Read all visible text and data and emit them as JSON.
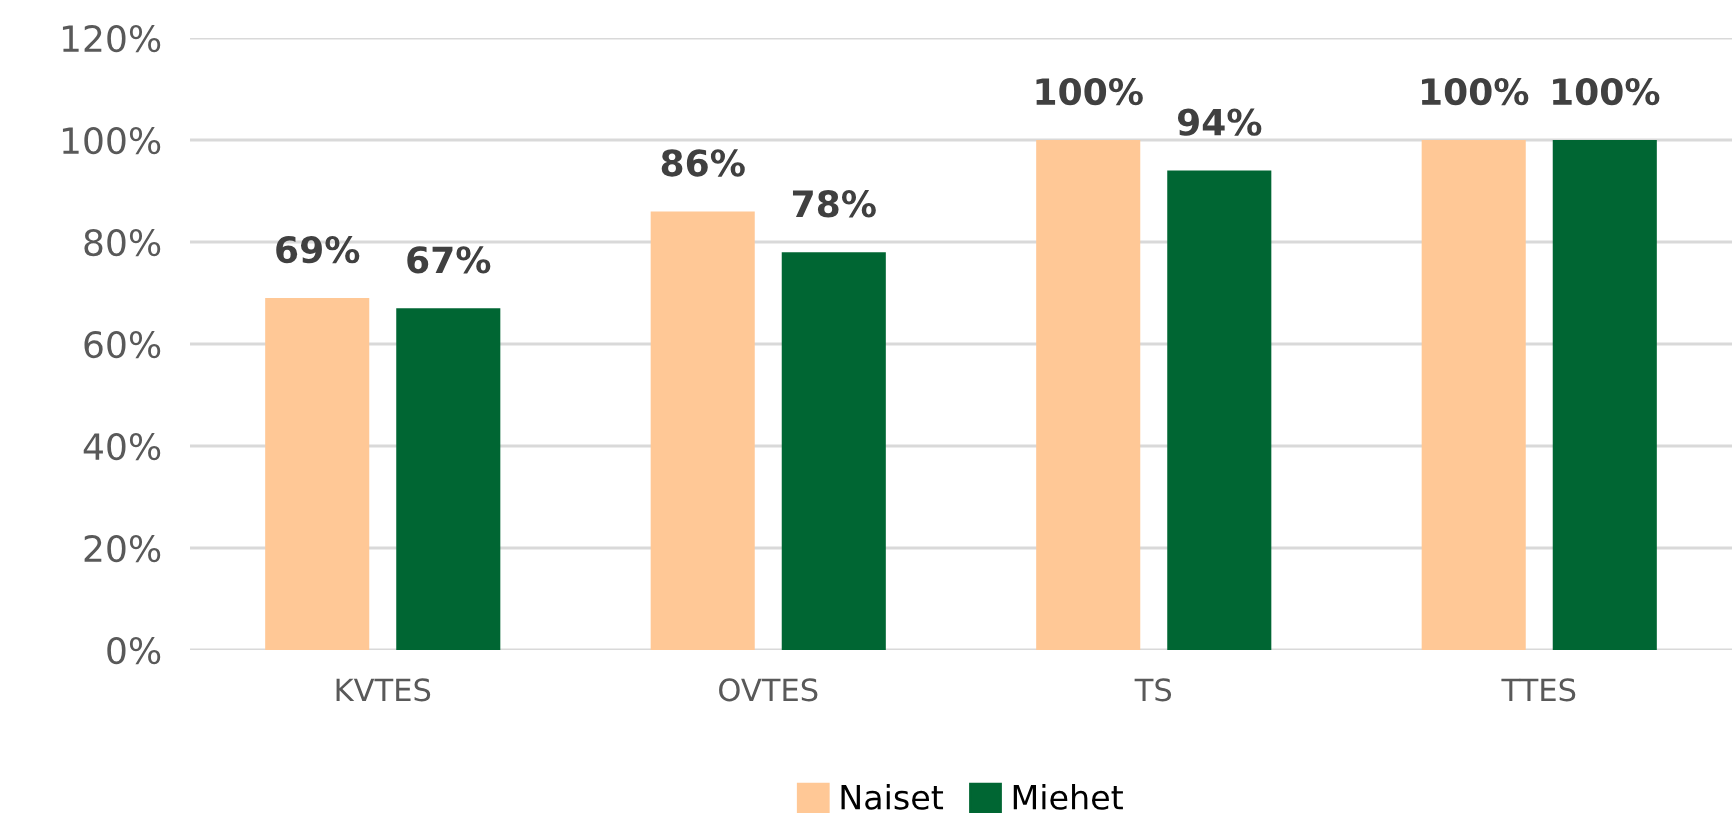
{
  "chart_data": {
    "type": "bar",
    "categories": [
      "KVTES",
      "OVTES",
      "TS",
      "TTES"
    ],
    "series": [
      {
        "name": "Naiset",
        "color": "#ffc896",
        "values": [
          69,
          86,
          100,
          100
        ],
        "value_labels": [
          "69%",
          "86%",
          "100%",
          "100%"
        ]
      },
      {
        "name": "Miehet",
        "color": "#006633",
        "values": [
          67,
          78,
          94,
          100
        ],
        "value_labels": [
          "67%",
          "78%",
          "94%",
          "100%"
        ]
      }
    ],
    "ylim": [
      0,
      120
    ],
    "yticks": [
      {
        "value": 0,
        "label": "0%"
      },
      {
        "value": 20,
        "label": "20%"
      },
      {
        "value": 40,
        "label": "40%"
      },
      {
        "value": 60,
        "label": "60%"
      },
      {
        "value": 80,
        "label": "80%"
      },
      {
        "value": 100,
        "label": "100%"
      },
      {
        "value": 120,
        "label": "120%"
      }
    ],
    "grid": "y",
    "legend": "bottom"
  }
}
